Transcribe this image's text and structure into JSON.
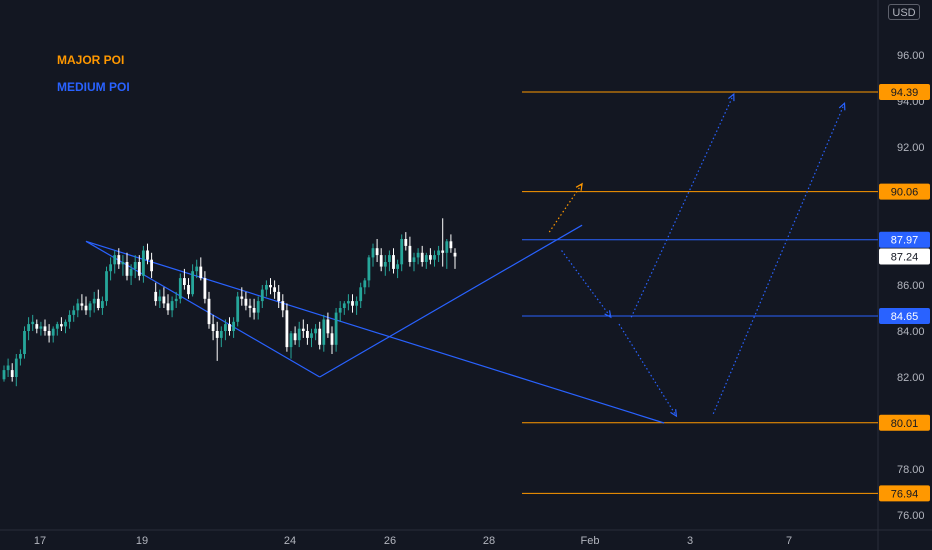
{
  "currency_button": "USD",
  "legend": {
    "major": "MAJOR POI",
    "medium": "MEDIUM POI"
  },
  "colors": {
    "background": "#131722",
    "up": "#26a69a",
    "down": "#ffffff",
    "major": "#ff9800",
    "medium": "#2962ff",
    "last": "#ffffff"
  },
  "chart_data": {
    "type": "candlestick",
    "y_axis": {
      "min": 75.5,
      "max": 98,
      "ticks": [
        "76.00",
        "78.00",
        "80.00",
        "82.00",
        "84.00",
        "86.00",
        "88.00",
        "90.00",
        "92.00",
        "94.00",
        "96.00"
      ]
    },
    "x_axis": {
      "ticks": [
        "17",
        "19",
        "24",
        "26",
        "28",
        "Feb",
        "3",
        "7"
      ]
    },
    "price_levels": [
      {
        "value": 94.39,
        "label": "94.39",
        "kind": "major"
      },
      {
        "value": 90.06,
        "label": "90.06",
        "kind": "major"
      },
      {
        "value": 87.97,
        "label": "87.97",
        "kind": "medium"
      },
      {
        "value": 87.24,
        "label": "87.24",
        "kind": "last"
      },
      {
        "value": 84.65,
        "label": "84.65",
        "kind": "medium"
      },
      {
        "value": 80.01,
        "label": "80.01",
        "kind": "major"
      },
      {
        "value": 76.94,
        "label": "76.94",
        "kind": "major"
      }
    ],
    "candles": [
      [
        81.9,
        82.5,
        81.8,
        82.3
      ],
      [
        82.3,
        82.8,
        82.0,
        82.5
      ],
      [
        82.3,
        82.6,
        81.8,
        82.0
      ],
      [
        82.0,
        83.0,
        81.6,
        82.8
      ],
      [
        82.8,
        83.2,
        82.5,
        83.0
      ],
      [
        83.0,
        84.2,
        82.8,
        84.0
      ],
      [
        84.0,
        84.6,
        83.6,
        84.3
      ],
      [
        84.3,
        84.7,
        84.0,
        84.4
      ],
      [
        84.3,
        84.5,
        83.9,
        84.1
      ],
      [
        84.1,
        84.4,
        83.8,
        84.2
      ],
      [
        84.2,
        84.5,
        83.8,
        84.0
      ],
      [
        84.0,
        84.3,
        83.5,
        83.8
      ],
      [
        83.8,
        84.2,
        83.5,
        84.1
      ],
      [
        84.1,
        84.4,
        83.8,
        84.3
      ],
      [
        84.3,
        84.6,
        84.0,
        84.2
      ],
      [
        84.2,
        84.5,
        83.9,
        84.4
      ],
      [
        84.4,
        84.9,
        84.1,
        84.7
      ],
      [
        84.7,
        85.1,
        84.4,
        84.9
      ],
      [
        84.9,
        85.4,
        84.6,
        85.2
      ],
      [
        85.2,
        85.6,
        84.9,
        85.1
      ],
      [
        85.1,
        85.5,
        84.7,
        84.9
      ],
      [
        84.9,
        85.3,
        84.6,
        85.2
      ],
      [
        85.2,
        85.7,
        84.8,
        85.4
      ],
      [
        85.4,
        85.8,
        84.9,
        85.0
      ],
      [
        85.0,
        85.5,
        84.7,
        85.3
      ],
      [
        85.3,
        86.8,
        85.1,
        86.6
      ],
      [
        86.6,
        87.2,
        86.2,
        86.9
      ],
      [
        86.9,
        87.5,
        86.5,
        87.3
      ],
      [
        87.3,
        87.6,
        86.7,
        86.9
      ],
      [
        86.9,
        87.3,
        86.4,
        87.0
      ],
      [
        87.0,
        87.4,
        86.2,
        86.4
      ],
      [
        86.4,
        86.9,
        86.0,
        86.7
      ],
      [
        86.7,
        87.3,
        86.3,
        87.0
      ],
      [
        87.0,
        87.3,
        86.2,
        86.4
      ],
      [
        86.4,
        87.7,
        86.1,
        87.5
      ],
      [
        87.5,
        87.8,
        86.9,
        87.1
      ],
      [
        87.1,
        87.4,
        86.3,
        86.6
      ],
      [
        85.7,
        86.1,
        85.1,
        85.3
      ],
      [
        85.3,
        85.8,
        85.0,
        85.5
      ],
      [
        85.5,
        85.9,
        85.0,
        85.2
      ],
      [
        85.2,
        85.6,
        84.7,
        84.9
      ],
      [
        84.9,
        85.5,
        84.6,
        85.3
      ],
      [
        85.3,
        85.7,
        85.0,
        85.4
      ],
      [
        85.4,
        86.5,
        85.2,
        86.3
      ],
      [
        86.3,
        86.7,
        85.8,
        86.0
      ],
      [
        86.0,
        86.3,
        85.4,
        85.6
      ],
      [
        85.6,
        86.9,
        85.5,
        86.6
      ],
      [
        86.6,
        87.1,
        86.3,
        86.8
      ],
      [
        86.8,
        87.2,
        86.2,
        86.3
      ],
      [
        86.3,
        86.6,
        85.2,
        85.4
      ],
      [
        85.4,
        85.7,
        84.1,
        84.3
      ],
      [
        84.3,
        84.7,
        83.6,
        84.0
      ],
      [
        84.0,
        84.4,
        82.7,
        83.7
      ],
      [
        83.7,
        84.2,
        83.3,
        84.0
      ],
      [
        84.0,
        84.5,
        83.6,
        84.3
      ],
      [
        84.3,
        84.6,
        83.8,
        84.0
      ],
      [
        84.0,
        84.6,
        83.7,
        84.4
      ],
      [
        84.4,
        85.7,
        84.2,
        85.5
      ],
      [
        85.5,
        85.9,
        85.1,
        85.4
      ],
      [
        85.4,
        85.7,
        84.9,
        85.1
      ],
      [
        85.1,
        85.4,
        84.6,
        85.0
      ],
      [
        85.0,
        85.4,
        84.5,
        84.8
      ],
      [
        84.8,
        85.5,
        84.5,
        85.3
      ],
      [
        85.3,
        86.0,
        85.0,
        85.8
      ],
      [
        85.8,
        86.2,
        85.5,
        86.0
      ],
      [
        86.0,
        86.3,
        85.6,
        85.9
      ],
      [
        85.9,
        86.2,
        85.4,
        85.7
      ],
      [
        85.7,
        86.0,
        85.0,
        85.3
      ],
      [
        85.3,
        85.6,
        84.6,
        84.9
      ],
      [
        84.9,
        85.2,
        83.1,
        83.3
      ],
      [
        83.3,
        84.0,
        82.8,
        83.9
      ],
      [
        83.9,
        84.2,
        83.4,
        83.6
      ],
      [
        83.6,
        84.4,
        83.3,
        84.1
      ],
      [
        84.1,
        84.5,
        83.7,
        84.0
      ],
      [
        84.0,
        84.3,
        83.4,
        83.7
      ],
      [
        83.7,
        84.1,
        83.3,
        83.9
      ],
      [
        83.9,
        84.3,
        83.6,
        84.1
      ],
      [
        84.1,
        84.4,
        83.2,
        83.4
      ],
      [
        83.4,
        84.7,
        83.1,
        84.5
      ],
      [
        84.5,
        84.8,
        83.7,
        83.9
      ],
      [
        83.9,
        84.2,
        83.0,
        83.4
      ],
      [
        83.4,
        85.0,
        83.1,
        84.8
      ],
      [
        84.8,
        85.3,
        84.4,
        85.0
      ],
      [
        85.0,
        85.3,
        84.7,
        85.2
      ],
      [
        85.2,
        85.6,
        84.9,
        85.3
      ],
      [
        85.3,
        85.6,
        84.8,
        85.1
      ],
      [
        85.1,
        85.5,
        84.7,
        85.3
      ],
      [
        85.3,
        86.1,
        85.0,
        85.9
      ],
      [
        85.9,
        86.3,
        85.6,
        86.2
      ],
      [
        86.2,
        87.3,
        85.9,
        87.2
      ],
      [
        87.2,
        87.8,
        86.8,
        87.6
      ],
      [
        87.6,
        88.0,
        87.0,
        87.3
      ],
      [
        87.3,
        87.6,
        86.6,
        86.8
      ],
      [
        86.8,
        87.3,
        86.4,
        87.0
      ],
      [
        87.0,
        87.5,
        86.6,
        87.3
      ],
      [
        87.3,
        87.6,
        86.5,
        86.7
      ],
      [
        86.7,
        87.1,
        86.3,
        86.9
      ],
      [
        86.9,
        88.2,
        86.6,
        88.0
      ],
      [
        88.0,
        88.3,
        87.5,
        87.7
      ],
      [
        87.7,
        88.1,
        86.8,
        87.0
      ],
      [
        87.0,
        87.4,
        86.6,
        87.2
      ],
      [
        87.2,
        87.6,
        86.9,
        87.4
      ],
      [
        87.4,
        87.7,
        86.8,
        87.0
      ],
      [
        87.0,
        87.4,
        86.7,
        87.3
      ],
      [
        87.3,
        87.6,
        86.9,
        87.1
      ],
      [
        87.1,
        87.5,
        86.8,
        87.3
      ],
      [
        87.3,
        87.7,
        87.0,
        87.5
      ],
      [
        87.5,
        88.9,
        86.8,
        87.4
      ],
      [
        87.4,
        88.0,
        86.7,
        87.9
      ],
      [
        87.9,
        88.2,
        87.4,
        87.6
      ],
      [
        87.4,
        87.6,
        86.7,
        87.24
      ]
    ],
    "trendlines": [
      {
        "from": [
          20,
          87.9
        ],
        "to": [
          77,
          82.0
        ]
      },
      {
        "from": [
          77,
          82.0
        ],
        "to": [
          141,
          88.6
        ]
      },
      {
        "from": [
          20,
          87.9
        ],
        "to": [
          161,
          80.0
        ]
      }
    ],
    "projections": [
      {
        "from": [
          133,
          88.3
        ],
        "to": [
          141,
          90.4
        ],
        "kind": "major"
      },
      {
        "from": [
          136,
          87.5
        ],
        "to": [
          148,
          84.6
        ],
        "kind": "medium"
      },
      {
        "from": [
          150,
          84.3
        ],
        "to": [
          164,
          80.3
        ],
        "kind": "medium"
      },
      {
        "from": [
          153,
          84.6
        ],
        "to": [
          178,
          94.3
        ],
        "kind": "medium"
      },
      {
        "from": [
          173,
          80.4
        ],
        "to": [
          205,
          93.9
        ],
        "kind": "medium"
      }
    ]
  }
}
